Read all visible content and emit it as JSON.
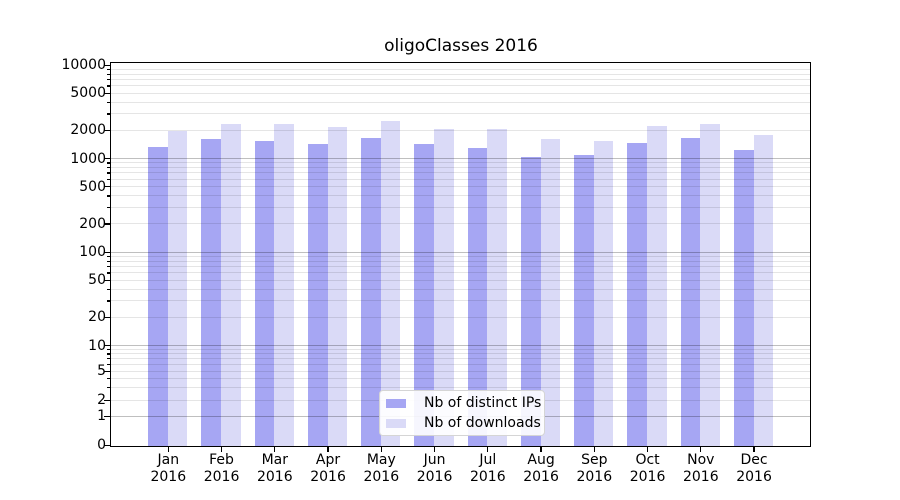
{
  "title": "oligoClasses 2016",
  "chart_data": {
    "type": "bar",
    "title": "oligoClasses 2016",
    "categories": [
      "Jan 2016",
      "Feb 2016",
      "Mar 2016",
      "Apr 2016",
      "May 2016",
      "Jun 2016",
      "Jul 2016",
      "Aug 2016",
      "Sep 2016",
      "Oct 2016",
      "Nov 2016",
      "Dec 2016"
    ],
    "series": [
      {
        "name": "Nb of distinct IPs",
        "color": "#a6a6f3",
        "values": [
          1340,
          1620,
          1550,
          1450,
          1660,
          1450,
          1300,
          1060,
          1110,
          1500,
          1660,
          1260
        ]
      },
      {
        "name": "Nb of downloads",
        "color": "#dadaf7",
        "values": [
          2010,
          2340,
          2340,
          2180,
          2520,
          2080,
          2070,
          1650,
          1560,
          2240,
          2360,
          1820
        ]
      }
    ],
    "xlabel": "",
    "ylabel": "",
    "yscale": "log-like (symlog), 0 at baseline",
    "y_tick_labels": [
      0,
      1,
      2,
      5,
      10,
      20,
      50,
      100,
      200,
      500,
      1000,
      2000,
      5000,
      10000
    ],
    "ylim": [
      0,
      10000
    ],
    "grid": "horizontal, minor light + major darker, drawn over bars",
    "legend_position": "lower center inside plot",
    "legend_entries": [
      "Nb of distinct IPs",
      "Nb of downloads"
    ]
  },
  "colors": {
    "distinct_ips_bar": "#a6a6f3",
    "downloads_bar": "#dadaf7",
    "grid_minor": "rgba(0,0,0,0.10)",
    "grid_major": "rgba(0,0,0,0.25)",
    "frame": "#000000",
    "background": "#ffffff"
  }
}
